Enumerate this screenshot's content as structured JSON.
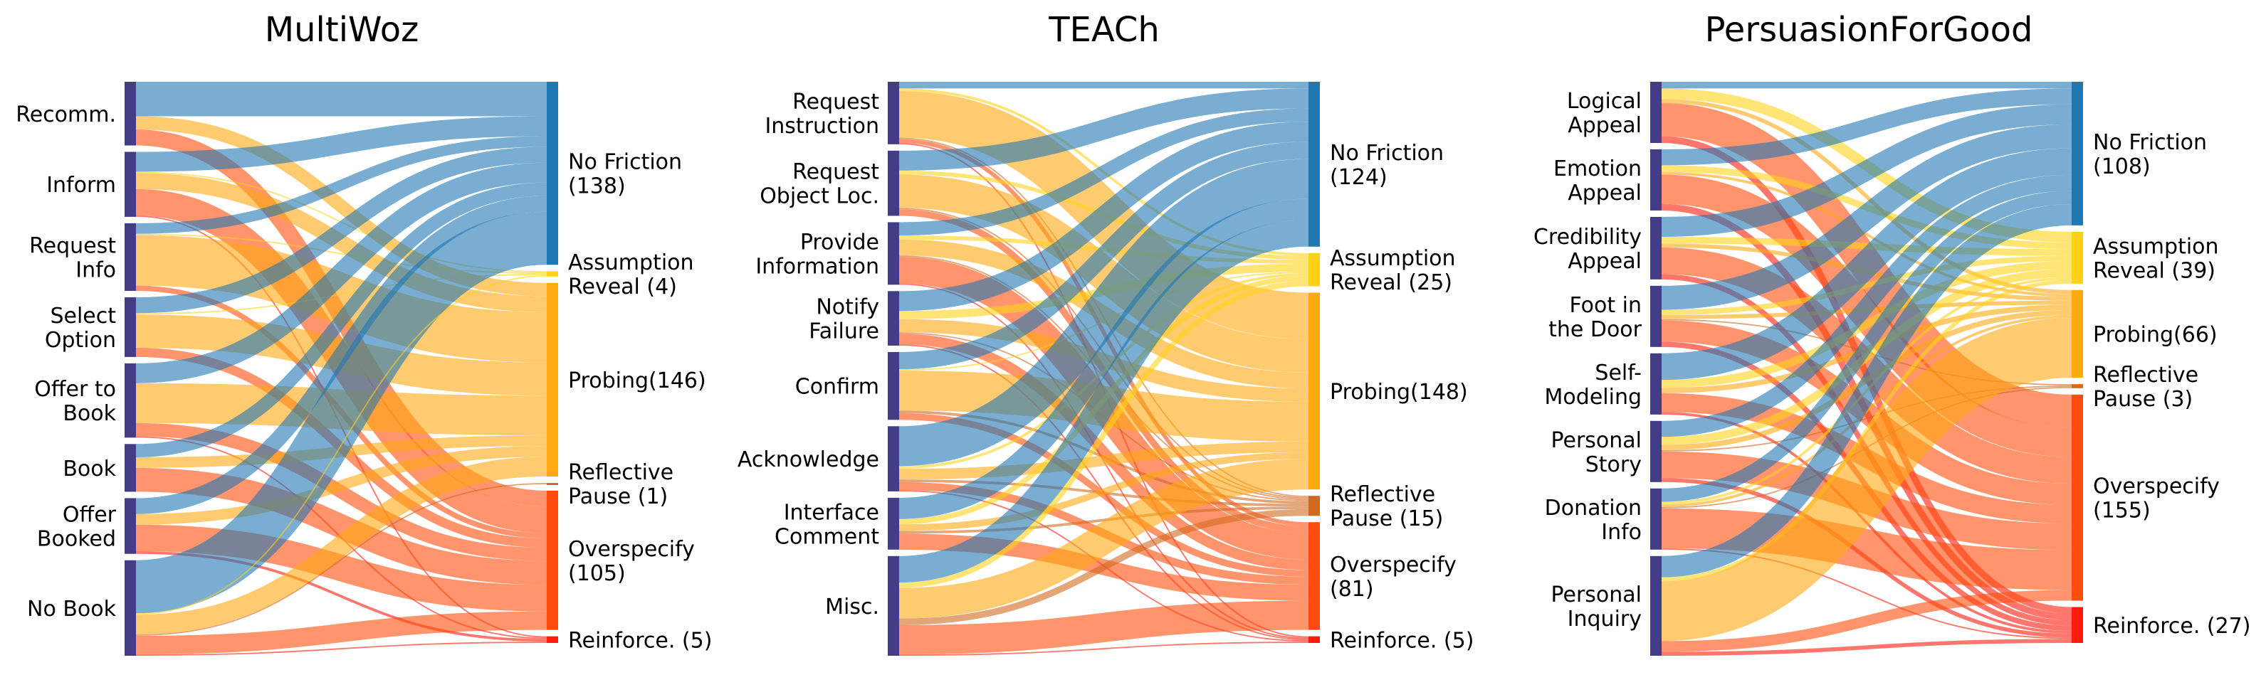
{
  "colors": {
    "source_node": "#433c87",
    "No Friction": "#1f77b4",
    "Assumption Reveal": "#ffd21a",
    "Probing": "#ffa812",
    "Reflective Pause": "#d2691e",
    "Overspecify": "#ff4c0c",
    "Reinforce.": "#ff1a0a"
  },
  "chart_data": [
    {
      "type": "sankey",
      "title": "MultiWoz",
      "sources": [
        "Recomm.",
        "Inform",
        "Request\nInfo",
        "Select\nOption",
        "Offer to\nBook",
        "Book",
        "Offer\nBooked",
        "No Book"
      ],
      "targets": [
        {
          "key": "No Friction",
          "label": "No Friction\n(138)",
          "value": 138
        },
        {
          "key": "Assumption Reveal",
          "label": "Assumption\nReveal (4)",
          "value": 4
        },
        {
          "key": "Probing",
          "label": "Probing(146)",
          "value": 146
        },
        {
          "key": "Reflective Pause",
          "label": "Reflective\nPause (1)",
          "value": 1
        },
        {
          "key": "Overspecify",
          "label": "Overspecify\n(105)",
          "value": 105
        },
        {
          "key": "Reinforce.",
          "label": "Reinforce. (5)",
          "value": 5
        }
      ],
      "flows": [
        [
          26,
          0,
          10,
          0,
          12,
          0
        ],
        [
          15,
          1,
          12,
          0,
          20,
          1
        ],
        [
          8,
          1,
          38,
          0,
          4,
          0
        ],
        [
          12,
          1,
          25,
          0,
          7,
          0
        ],
        [
          15,
          0,
          30,
          0,
          10,
          1
        ],
        [
          10,
          0,
          8,
          0,
          18,
          0
        ],
        [
          12,
          0,
          8,
          0,
          20,
          2
        ],
        [
          40,
          1,
          15,
          1,
          14,
          1
        ]
      ]
    },
    {
      "type": "sankey",
      "title": "TEACh",
      "sources": [
        "Request\nInstruction",
        "Request\nObject Loc.",
        "Provide\nInformation",
        "Notify\nFailure",
        "Confirm",
        "Acknowledge",
        "Interface\nComment",
        "Misc."
      ],
      "targets": [
        {
          "key": "No Friction",
          "label": "No Friction\n(124)",
          "value": 124
        },
        {
          "key": "Assumption Reveal",
          "label": "Assumption\nReveal (25)",
          "value": 25
        },
        {
          "key": "Probing",
          "label": "Probing(148)",
          "value": 148
        },
        {
          "key": "Reflective Pause",
          "label": "Reflective\nPause (15)",
          "value": 15
        },
        {
          "key": "Overspecify",
          "label": "Overspecify\n(81)",
          "value": 81
        },
        {
          "key": "Reinforce.",
          "label": "Reinforce. (5)",
          "value": 5
        }
      ],
      "flows": [
        [
          5,
          2,
          35,
          1,
          3,
          1
        ],
        [
          15,
          3,
          25,
          1,
          5,
          0
        ],
        [
          10,
          3,
          12,
          1,
          20,
          1
        ],
        [
          15,
          6,
          10,
          1,
          8,
          1
        ],
        [
          13,
          1,
          30,
          2,
          5,
          0
        ],
        [
          30,
          2,
          8,
          2,
          6,
          1
        ],
        [
          16,
          4,
          5,
          2,
          12,
          0
        ],
        [
          20,
          4,
          23,
          5,
          22,
          1
        ]
      ]
    },
    {
      "type": "sankey",
      "title": "PersuasionForGood",
      "sources": [
        "Logical\nAppeal",
        "Emotion\nAppeal",
        "Credibility\nAppeal",
        "Foot in\nthe Door",
        "Self-\nModeling",
        "Personal\nStory",
        "Donation\nInfo",
        "Personal\nInquiry"
      ],
      "targets": [
        {
          "key": "No Friction",
          "label": "No Friction\n(108)",
          "value": 108
        },
        {
          "key": "Assumption Reveal",
          "label": "Assumption\nReveal (39)",
          "value": 39
        },
        {
          "key": "Probing",
          "label": "Probing(66)",
          "value": 66
        },
        {
          "key": "Reflective Pause",
          "label": "Reflective\nPause (3)",
          "value": 3
        },
        {
          "key": "Overspecify",
          "label": "Overspecify\n(155)",
          "value": 155
        },
        {
          "key": "Reinforce.",
          "label": "Reinforce. (27)",
          "value": 27
        }
      ],
      "flows": [
        [
          5,
          8,
          3,
          0,
          25,
          5
        ],
        [
          12,
          5,
          2,
          0,
          22,
          5
        ],
        [
          15,
          5,
          3,
          0,
          20,
          4
        ],
        [
          18,
          4,
          3,
          1,
          16,
          4
        ],
        [
          20,
          6,
          4,
          0,
          14,
          2
        ],
        [
          12,
          6,
          4,
          1,
          20,
          3
        ],
        [
          10,
          2,
          2,
          1,
          30,
          1
        ],
        [
          16,
          3,
          45,
          0,
          8,
          3
        ]
      ]
    }
  ]
}
